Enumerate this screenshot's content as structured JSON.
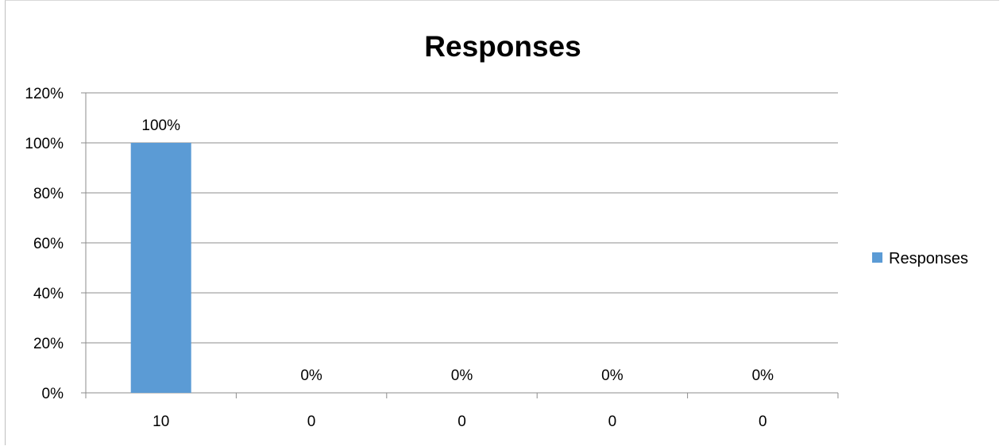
{
  "chart_data": {
    "type": "bar",
    "title": "Responses",
    "categories": [
      "10",
      "0",
      "0",
      "0",
      "0"
    ],
    "series": [
      {
        "name": "Responses",
        "values": [
          100,
          0,
          0,
          0,
          0
        ],
        "color": "#5b9bd5"
      }
    ],
    "data_labels": [
      "100%",
      "0%",
      "0%",
      "0%",
      "0%"
    ],
    "y_ticks": [
      "0%",
      "20%",
      "40%",
      "60%",
      "80%",
      "100%",
      "120%"
    ],
    "ylim": [
      0,
      120
    ],
    "y_unit": "%",
    "grid": true,
    "gridline_color": "#8c8c8c",
    "legend_position": "right"
  }
}
